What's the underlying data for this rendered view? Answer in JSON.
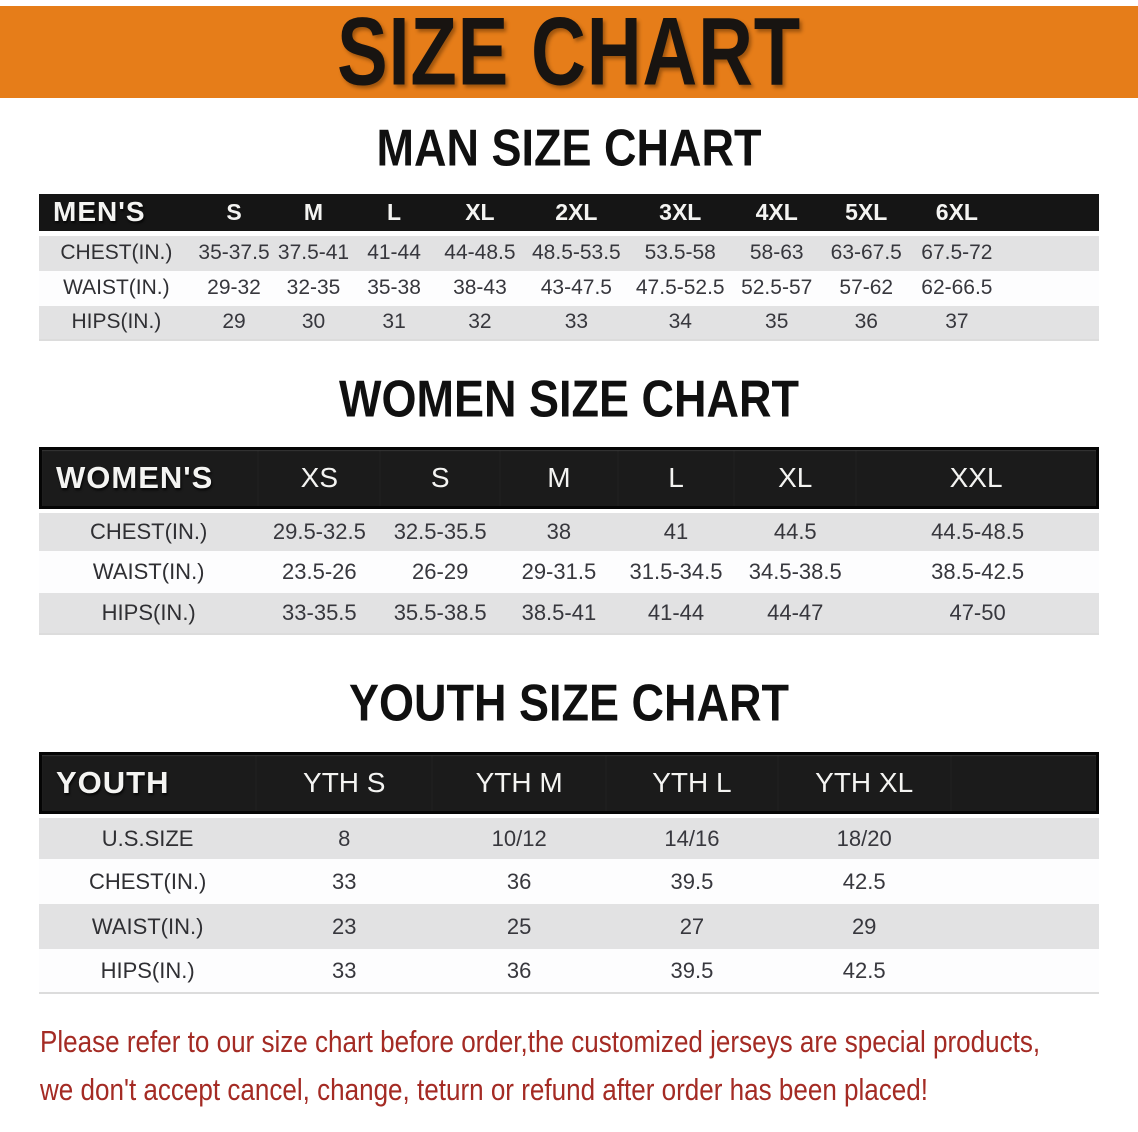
{
  "banner": {
    "title": "SIZE CHART",
    "bg_color": "#E67D19",
    "text_color": "#181411"
  },
  "sections": [
    {
      "id": "man",
      "heading": "MAN SIZE CHART",
      "corner_label": "MEN'S",
      "columns": [
        "S",
        "M",
        "L",
        "XL",
        "2XL",
        "3XL",
        "4XL",
        "5XL",
        "6XL"
      ],
      "rows": [
        {
          "label": "CHEST(IN.)",
          "values": [
            "35-37.5",
            "37.5-41",
            "41-44",
            "44-48.5",
            "48.5-53.5",
            "53.5-58",
            "58-63",
            "63-67.5",
            "67.5-72"
          ]
        },
        {
          "label": "WAIST(IN.)",
          "values": [
            "29-32",
            "32-35",
            "35-38",
            "38-43",
            "43-47.5",
            "47.5-52.5",
            "52.5-57",
            "57-62",
            "62-66.5"
          ]
        },
        {
          "label": "HIPS(IN.)",
          "values": [
            "29",
            "30",
            "31",
            "32",
            "33",
            "34",
            "35",
            "36",
            "37"
          ]
        }
      ]
    },
    {
      "id": "women",
      "heading": "WOMEN SIZE CHART",
      "corner_label": "WOMEN'S",
      "columns": [
        "XS",
        "S",
        "M",
        "L",
        "XL",
        "XXL"
      ],
      "rows": [
        {
          "label": "CHEST(IN.)",
          "values": [
            "29.5-32.5",
            "32.5-35.5",
            "38",
            "41",
            "44.5",
            "44.5-48.5"
          ]
        },
        {
          "label": "WAIST(IN.)",
          "values": [
            "23.5-26",
            "26-29",
            "29-31.5",
            "31.5-34.5",
            "34.5-38.5",
            "38.5-42.5"
          ]
        },
        {
          "label": "HIPS(IN.)",
          "values": [
            "33-35.5",
            "35.5-38.5",
            "38.5-41",
            "41-44",
            "44-47",
            "47-50"
          ]
        }
      ]
    },
    {
      "id": "youth",
      "heading": "YOUTH SIZE CHART",
      "corner_label": "YOUTH",
      "columns": [
        "YTH S",
        "YTH M",
        "YTH L",
        "YTH XL"
      ],
      "rows": [
        {
          "label": "U.S.SIZE",
          "values": [
            "8",
            "10/12",
            "14/16",
            "18/20"
          ]
        },
        {
          "label": "CHEST(IN.)",
          "values": [
            "33",
            "36",
            "39.5",
            "42.5"
          ]
        },
        {
          "label": "WAIST(IN.)",
          "values": [
            "23",
            "25",
            "27",
            "29"
          ]
        },
        {
          "label": "HIPS(IN.)",
          "values": [
            "33",
            "36",
            "39.5",
            "42.5"
          ]
        }
      ]
    }
  ],
  "footer_note": {
    "line1": "Please refer to our size chart before order,the customized jerseys are special products,",
    "line2": "we don't accept cancel, change, teturn or refund after order has been placed!",
    "color": "#A42B24"
  },
  "colors": {
    "header_bar": "#151515",
    "framed_header_bar": "#1B1B1B",
    "row_alt": "#E2E2E3",
    "row_white": "#FDFDFE",
    "value_text": "#37373D"
  }
}
